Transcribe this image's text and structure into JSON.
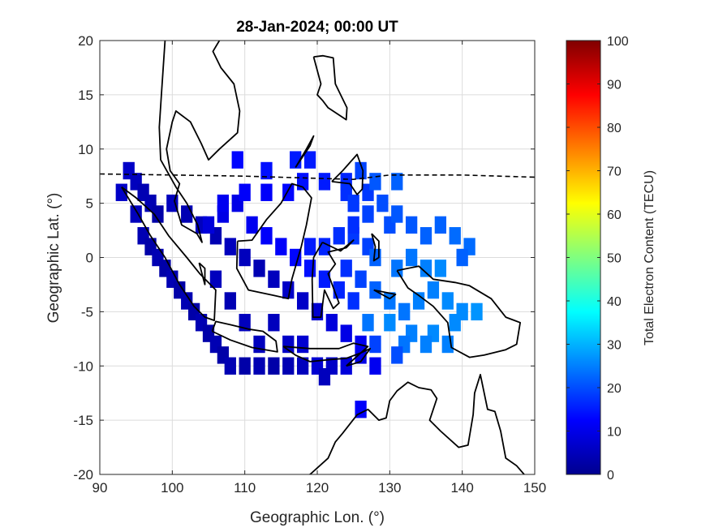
{
  "chart_data": {
    "type": "heatmap",
    "title": "28-Jan-2024; 00:00 UT",
    "xlabel": "Geographic Lon. (°)",
    "ylabel": "Geographic Lat. (°)",
    "xlim": [
      90,
      150
    ],
    "ylim": [
      -20,
      20
    ],
    "xticks": [
      90,
      100,
      110,
      120,
      130,
      140,
      150
    ],
    "yticks": [
      20,
      15,
      10,
      5,
      0,
      -5,
      -10,
      -15,
      -20
    ],
    "grid": true,
    "colorbar": {
      "label": "Total Electron Content (TECU)",
      "min": 0,
      "max": 100,
      "ticks": [
        0,
        10,
        20,
        30,
        40,
        50,
        60,
        70,
        80,
        90,
        100
      ],
      "colormap": "jet"
    },
    "dip_equator": [
      [
        90,
        7.7
      ],
      [
        100,
        7.6
      ],
      [
        110,
        7.5
      ],
      [
        120,
        7.3
      ],
      [
        125,
        7.2
      ],
      [
        130,
        7.6
      ],
      [
        140,
        7.6
      ],
      [
        150,
        7.4
      ]
    ],
    "coastlines": [
      [
        [
          93,
          6.5
        ],
        [
          95,
          5.5
        ],
        [
          97.5,
          4
        ],
        [
          99.5,
          2
        ],
        [
          102,
          0
        ],
        [
          103.8,
          -1.5
        ],
        [
          106,
          -3
        ],
        [
          105.8,
          -5.8
        ],
        [
          104.5,
          -5.5
        ],
        [
          103,
          -4.5
        ],
        [
          101,
          -2.5
        ],
        [
          99,
          0
        ],
        [
          97,
          2
        ],
        [
          95.3,
          4
        ],
        [
          93,
          6.5
        ]
      ],
      [
        [
          99,
          20
        ],
        [
          98.5,
          15
        ],
        [
          98.2,
          12
        ],
        [
          98.4,
          9
        ],
        [
          100.5,
          6.5
        ],
        [
          102,
          5
        ],
        [
          103.5,
          3
        ],
        [
          104.1,
          1.4
        ],
        [
          103.4,
          2.2
        ],
        [
          101.3,
          3
        ],
        [
          100.3,
          5.2
        ],
        [
          101,
          6.8
        ],
        [
          99.7,
          8
        ],
        [
          99.2,
          10
        ],
        [
          100,
          12.5
        ],
        [
          100.5,
          13.5
        ],
        [
          102.5,
          12.5
        ],
        [
          104,
          10.5
        ],
        [
          105,
          9
        ],
        [
          106.5,
          10
        ],
        [
          109,
          11.5
        ],
        [
          109.3,
          13.5
        ],
        [
          108.5,
          16
        ],
        [
          106.7,
          17.5
        ],
        [
          105.6,
          19
        ],
        [
          106.5,
          20
        ]
      ],
      [
        [
          109,
          1.5
        ],
        [
          108.9,
          -1
        ],
        [
          110.5,
          -3
        ],
        [
          114,
          -3.5
        ],
        [
          116,
          -3.8
        ],
        [
          116.5,
          -2
        ],
        [
          117.8,
          1
        ],
        [
          118.5,
          3
        ],
        [
          119.2,
          5.5
        ],
        [
          118,
          6.5
        ],
        [
          116.5,
          6.8
        ],
        [
          115,
          5
        ],
        [
          113,
          3.5
        ],
        [
          111,
          1.6
        ],
        [
          109,
          1.5
        ]
      ],
      [
        [
          105.5,
          -6.8
        ],
        [
          108,
          -7.6
        ],
        [
          111,
          -8.3
        ],
        [
          114.5,
          -8.7
        ],
        [
          114.3,
          -7.7
        ],
        [
          112.5,
          -6.8
        ],
        [
          110.5,
          -6.6
        ],
        [
          108,
          -6.2
        ],
        [
          106,
          -5.9
        ],
        [
          105.5,
          -6.8
        ]
      ],
      [
        [
          120.7,
          1.4
        ],
        [
          119.5,
          0
        ],
        [
          119.3,
          -2
        ],
        [
          119.4,
          -5.5
        ],
        [
          120.5,
          -5.5
        ],
        [
          121,
          -3
        ],
        [
          122.2,
          -4.7
        ],
        [
          123,
          -4.2
        ],
        [
          121.5,
          -1.5
        ],
        [
          122.5,
          -0.6
        ],
        [
          121.5,
          0.5
        ],
        [
          124,
          0.9
        ],
        [
          125,
          1.6
        ],
        [
          123.2,
          0.6
        ],
        [
          120.7,
          1.4
        ]
      ],
      [
        [
          131,
          -1.2
        ],
        [
          134,
          -0.8
        ],
        [
          136,
          -2
        ],
        [
          139,
          -2.3
        ],
        [
          141,
          -2.6
        ],
        [
          144,
          -3.8
        ],
        [
          146,
          -5.5
        ],
        [
          148,
          -6
        ],
        [
          147.5,
          -8
        ],
        [
          146,
          -8.5
        ],
        [
          143,
          -9
        ],
        [
          141,
          -9.2
        ],
        [
          138.5,
          -8.3
        ],
        [
          138,
          -6
        ],
        [
          136,
          -4.5
        ],
        [
          134,
          -3.5
        ],
        [
          132.5,
          -2.8
        ],
        [
          131,
          -1.2
        ]
      ],
      [
        [
          114,
          -22
        ],
        [
          114.2,
          -21
        ],
        [
          116.5,
          -20.5
        ],
        [
          119,
          -20
        ],
        [
          121.5,
          -18.5
        ],
        [
          122.5,
          -17
        ],
        [
          123.5,
          -16.2
        ],
        [
          125.5,
          -14.5
        ],
        [
          127,
          -14
        ],
        [
          128.5,
          -15
        ],
        [
          129.5,
          -14.8
        ],
        [
          130,
          -13.2
        ],
        [
          131,
          -12.3
        ],
        [
          132.5,
          -11.5
        ],
        [
          134,
          -12
        ],
        [
          135.7,
          -12.2
        ],
        [
          136.5,
          -13
        ],
        [
          135.5,
          -15
        ],
        [
          137,
          -16
        ],
        [
          139.5,
          -17.5
        ],
        [
          140.8,
          -17.3
        ],
        [
          141.5,
          -14.5
        ],
        [
          141.7,
          -12.5
        ],
        [
          142.5,
          -10.8
        ],
        [
          143.5,
          -14
        ],
        [
          144.5,
          -14.2
        ],
        [
          145.3,
          -16
        ],
        [
          146,
          -18.5
        ],
        [
          147.5,
          -19.2
        ],
        [
          148.8,
          -20.2
        ],
        [
          150,
          -22
        ]
      ],
      [
        [
          119.5,
          18.5
        ],
        [
          120.5,
          16
        ],
        [
          120,
          15
        ],
        [
          120.7,
          14.5
        ],
        [
          121.5,
          13.8
        ],
        [
          124,
          12.7
        ],
        [
          124.1,
          13.8
        ],
        [
          122.5,
          16
        ],
        [
          122.2,
          18.4
        ],
        [
          120.8,
          18.6
        ],
        [
          119.5,
          18.5
        ]
      ],
      [
        [
          122,
          7
        ],
        [
          123.5,
          8
        ],
        [
          125.5,
          9.5
        ],
        [
          126.3,
          8
        ],
        [
          126.2,
          6.3
        ],
        [
          125.5,
          5.8
        ],
        [
          124.5,
          6.8
        ],
        [
          122,
          7
        ]
      ],
      [
        [
          117,
          8.3
        ],
        [
          119,
          10.3
        ],
        [
          119.5,
          11.2
        ],
        [
          118.5,
          10
        ],
        [
          117,
          8.3
        ]
      ],
      [
        [
          103.7,
          -0.5
        ],
        [
          104.5,
          -1
        ],
        [
          104.5,
          -2.5
        ],
        [
          103.7,
          -0.5
        ]
      ],
      [
        [
          115.3,
          -8.2
        ],
        [
          119,
          -8.4
        ],
        [
          123,
          -8.4
        ],
        [
          125,
          -7.9
        ],
        [
          127,
          -8.2
        ],
        [
          126,
          -8.8
        ],
        [
          124,
          -9.3
        ],
        [
          122,
          -9.4
        ],
        [
          119,
          -9.6
        ],
        [
          117,
          -9
        ],
        [
          115.3,
          -8.2
        ]
      ],
      [
        [
          124,
          -10
        ],
        [
          126,
          -8.8
        ],
        [
          127.3,
          -8.4
        ],
        [
          126,
          -9.6
        ],
        [
          124,
          -10
        ]
      ],
      [
        [
          127.5,
          2.2
        ],
        [
          128.5,
          1.5
        ],
        [
          128.5,
          0
        ],
        [
          127.8,
          -0.3
        ],
        [
          128,
          1
        ],
        [
          127.5,
          2.2
        ]
      ],
      [
        [
          127.8,
          -3
        ],
        [
          130.8,
          -3.4
        ],
        [
          130,
          -3.8
        ],
        [
          127.8,
          -3
        ]
      ]
    ],
    "tec_blocks": [
      [
        94,
        8,
        7
      ],
      [
        95,
        7,
        6
      ],
      [
        96,
        6,
        5
      ],
      [
        97,
        5,
        5
      ],
      [
        98,
        4,
        4
      ],
      [
        93,
        6,
        7
      ],
      [
        95,
        4,
        6
      ],
      [
        96,
        2,
        5
      ],
      [
        97,
        1,
        4
      ],
      [
        98,
        0,
        5
      ],
      [
        99,
        -1,
        4
      ],
      [
        100,
        -2,
        5
      ],
      [
        101,
        -3,
        4
      ],
      [
        102,
        -4,
        5
      ],
      [
        103,
        -5,
        4
      ],
      [
        104,
        -6,
        5
      ],
      [
        105,
        -7,
        4
      ],
      [
        106,
        -8,
        5
      ],
      [
        107,
        -9,
        4
      ],
      [
        108,
        -10,
        5
      ],
      [
        110,
        -10,
        4
      ],
      [
        112,
        -10,
        5
      ],
      [
        114,
        -10,
        4
      ],
      [
        116,
        -10,
        5
      ],
      [
        118,
        -10,
        6
      ],
      [
        120,
        -10,
        8
      ],
      [
        122,
        -10,
        7
      ],
      [
        124,
        -10,
        9
      ],
      [
        126,
        -9,
        10
      ],
      [
        128,
        -10,
        11
      ],
      [
        121,
        -11,
        6
      ],
      [
        100,
        5,
        6
      ],
      [
        102,
        4,
        5
      ],
      [
        104,
        3,
        6
      ],
      [
        106,
        2,
        5
      ],
      [
        108,
        1,
        6
      ],
      [
        110,
        0,
        6
      ],
      [
        112,
        -1,
        5
      ],
      [
        114,
        -2,
        6
      ],
      [
        116,
        -3,
        7
      ],
      [
        118,
        -4,
        7
      ],
      [
        120,
        -5,
        8
      ],
      [
        122,
        -6,
        9
      ],
      [
        124,
        -7,
        10
      ],
      [
        126,
        -8,
        11
      ],
      [
        106,
        -2,
        6
      ],
      [
        108,
        -4,
        5
      ],
      [
        110,
        -6,
        6
      ],
      [
        112,
        -8,
        6
      ],
      [
        114,
        -6,
        6
      ],
      [
        116,
        -8,
        7
      ],
      [
        118,
        -8,
        8
      ],
      [
        105,
        3,
        9
      ],
      [
        107,
        4,
        10
      ],
      [
        109,
        5,
        10
      ],
      [
        111,
        3,
        11
      ],
      [
        113,
        2,
        12
      ],
      [
        115,
        1,
        12
      ],
      [
        117,
        0,
        13
      ],
      [
        119,
        -1,
        14
      ],
      [
        121,
        -2,
        15
      ],
      [
        123,
        -3,
        16
      ],
      [
        125,
        -4,
        17
      ],
      [
        107,
        5,
        11
      ],
      [
        110,
        6,
        12
      ],
      [
        113,
        6,
        12
      ],
      [
        116,
        6,
        13
      ],
      [
        118,
        7,
        14
      ],
      [
        121,
        7,
        15
      ],
      [
        124,
        7,
        16
      ],
      [
        127,
        6,
        18
      ],
      [
        130,
        3,
        20
      ],
      [
        119,
        1,
        15
      ],
      [
        121,
        1,
        16
      ],
      [
        123,
        2,
        17
      ],
      [
        125,
        2,
        18
      ],
      [
        127,
        1,
        19
      ],
      [
        125,
        3,
        17
      ],
      [
        127,
        4,
        19
      ],
      [
        129,
        5,
        20
      ],
      [
        131,
        4,
        21
      ],
      [
        133,
        3,
        21
      ],
      [
        135,
        2,
        22
      ],
      [
        137,
        3,
        22
      ],
      [
        139,
        2,
        23
      ],
      [
        141,
        1,
        23
      ],
      [
        140,
        0,
        22
      ],
      [
        124,
        -1,
        17
      ],
      [
        126,
        -2,
        19
      ],
      [
        128,
        -3,
        22
      ],
      [
        130,
        -4,
        24
      ],
      [
        132,
        -5,
        24
      ],
      [
        134,
        -4,
        25
      ],
      [
        136,
        -3,
        25
      ],
      [
        138,
        -4,
        26
      ],
      [
        140,
        -5,
        26
      ],
      [
        142,
        -5,
        27
      ],
      [
        128,
        0,
        22
      ],
      [
        131,
        -1,
        24
      ],
      [
        133,
        0,
        24
      ],
      [
        135,
        -1,
        25
      ],
      [
        137,
        -1,
        26
      ],
      [
        127,
        -6,
        24
      ],
      [
        130,
        -6,
        26
      ],
      [
        133,
        -7,
        25
      ],
      [
        136,
        -7,
        26
      ],
      [
        139,
        -6,
        26
      ],
      [
        132,
        -8,
        24
      ],
      [
        135,
        -8,
        25
      ],
      [
        138,
        -8,
        25
      ],
      [
        131,
        -9,
        20
      ],
      [
        109,
        9,
        13
      ],
      [
        113,
        8,
        14
      ],
      [
        117,
        9,
        15
      ],
      [
        119,
        9,
        15
      ],
      [
        124,
        6,
        17
      ],
      [
        126,
        8,
        19
      ],
      [
        128,
        7,
        21
      ],
      [
        131,
        7,
        22
      ],
      [
        125,
        5,
        18
      ],
      [
        128,
        -8,
        19
      ],
      [
        126,
        -14,
        12
      ]
    ]
  }
}
